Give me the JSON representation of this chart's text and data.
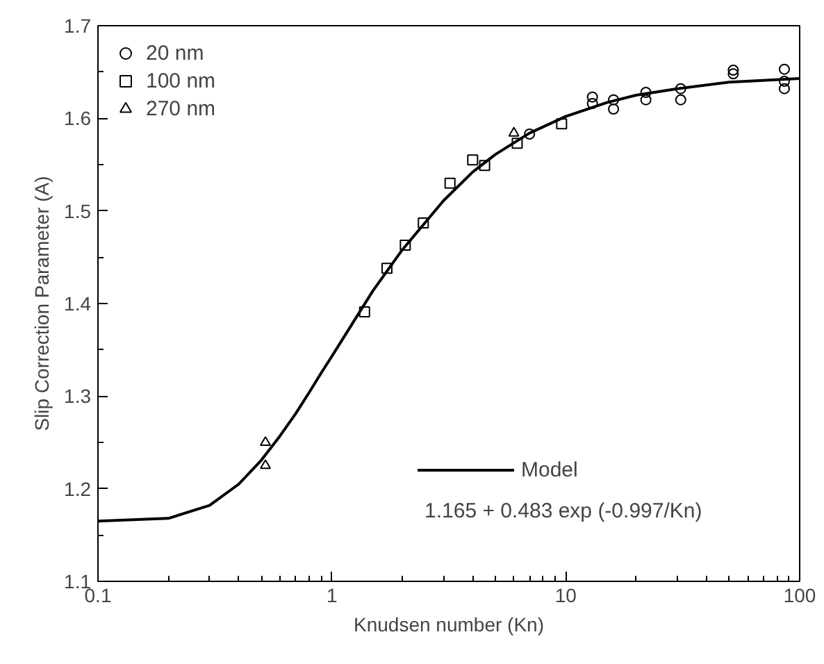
{
  "chart_data": {
    "type": "scatter",
    "xlabel": "Knudsen number (Kn)",
    "ylabel": "Slip Correction Parameter (A)",
    "log": "x",
    "xlim": [
      0.1,
      100
    ],
    "xticks": [
      0.1,
      1,
      10,
      100
    ],
    "ylim": [
      1.1,
      1.7
    ],
    "yticks": [
      1.1,
      1.2,
      1.3,
      1.4,
      1.5,
      1.6,
      1.7
    ],
    "grid": false,
    "legend": "top left",
    "series": [
      {
        "name": "20 nm",
        "color": "#000000",
        "marker": "circle",
        "x": [
          7,
          13,
          13,
          16,
          16,
          22,
          22,
          31,
          31,
          52,
          52,
          86,
          86,
          86
        ],
        "values": [
          1.583,
          1.623,
          1.616,
          1.62,
          1.61,
          1.628,
          1.62,
          1.632,
          1.62,
          1.652,
          1.648,
          1.653,
          1.64,
          1.632
        ]
      },
      {
        "name": "100 nm",
        "color": "#000000",
        "marker": "square",
        "x": [
          1.38,
          1.72,
          2.06,
          2.46,
          3.2,
          4.0,
          4.5,
          6.2,
          9.6
        ],
        "values": [
          1.391,
          1.438,
          1.463,
          1.487,
          1.53,
          1.555,
          1.549,
          1.573,
          1.594
        ]
      },
      {
        "name": "270 nm",
        "color": "#000000",
        "marker": "triangle",
        "x": [
          0.52,
          0.52,
          6.0
        ],
        "values": [
          1.25,
          1.225,
          1.584
        ]
      },
      {
        "name": "Model",
        "type": "line",
        "color": "#000000",
        "marker": "none",
        "line_style": "solid",
        "x": [
          0.1,
          0.2,
          0.3,
          0.4,
          0.5,
          0.6,
          0.7,
          0.8,
          0.9,
          1,
          1.5,
          2,
          3,
          4,
          5,
          7,
          10,
          15,
          20,
          30,
          50,
          70,
          100
        ],
        "values": [
          1.165,
          1.168,
          1.182,
          1.205,
          1.231,
          1.257,
          1.281,
          1.304,
          1.325,
          1.343,
          1.414,
          1.458,
          1.511,
          1.542,
          1.561,
          1.584,
          1.602,
          1.617,
          1.625,
          1.632,
          1.639,
          1.641,
          1.643
        ]
      }
    ],
    "annotations": [
      "1.165 + 0.483 exp (-0.997/Kn)"
    ]
  }
}
